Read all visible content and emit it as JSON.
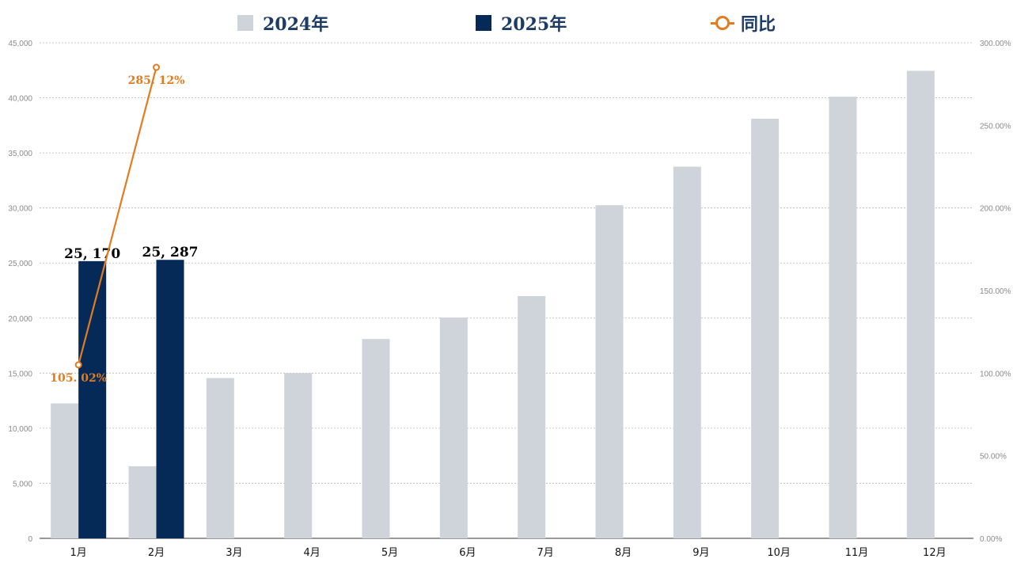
{
  "legend": {
    "series_2024": "2024年",
    "series_2025": "2025年",
    "series_yoy": "同比"
  },
  "colors": {
    "series_2024": "#cfd4da",
    "series_2025": "#062a57",
    "series_yoy": "#e37b1f",
    "grid": "#b7b7b7",
    "axis_text": "#8a8a8a"
  },
  "chart_data": {
    "type": "bar",
    "categories": [
      "1月",
      "2月",
      "3月",
      "4月",
      "5月",
      "6月",
      "7月",
      "8月",
      "9月",
      "10月",
      "11月",
      "12月"
    ],
    "series": [
      {
        "name": "2024年",
        "type": "bar",
        "axis": "left",
        "values": [
          12250,
          6550,
          14550,
          15000,
          18100,
          20050,
          22000,
          30250,
          33750,
          38100,
          40100,
          42450
        ]
      },
      {
        "name": "2025年",
        "type": "bar",
        "axis": "left",
        "values": [
          25170,
          25287,
          null,
          null,
          null,
          null,
          null,
          null,
          null,
          null,
          null,
          null
        ],
        "data_labels": [
          "25, 170",
          "25, 287"
        ]
      },
      {
        "name": "同比",
        "type": "line",
        "axis": "right",
        "values": [
          105.02,
          285.12,
          null,
          null,
          null,
          null,
          null,
          null,
          null,
          null,
          null,
          null
        ],
        "data_labels": [
          "105. 02%",
          "285. 12%"
        ]
      }
    ],
    "y_left": {
      "min": 0,
      "max": 45000,
      "ticks": [
        0,
        5000,
        10000,
        15000,
        20000,
        25000,
        30000,
        35000,
        40000,
        45000
      ],
      "tick_labels": [
        "0",
        "5,000",
        "10,000",
        "15,000",
        "20,000",
        "25,000",
        "30,000",
        "35,000",
        "40,000",
        "45,000"
      ]
    },
    "y_right": {
      "min": 0,
      "max": 300,
      "ticks": [
        0,
        50,
        100,
        150,
        200,
        250,
        300
      ],
      "tick_labels": [
        "0.00%",
        "50.00%",
        "100.00%",
        "150.00%",
        "200.00%",
        "250.00%",
        "300.00%"
      ]
    },
    "grid": true,
    "legend_position": "top-center",
    "title": "",
    "xlabel": "",
    "ylabel": ""
  }
}
